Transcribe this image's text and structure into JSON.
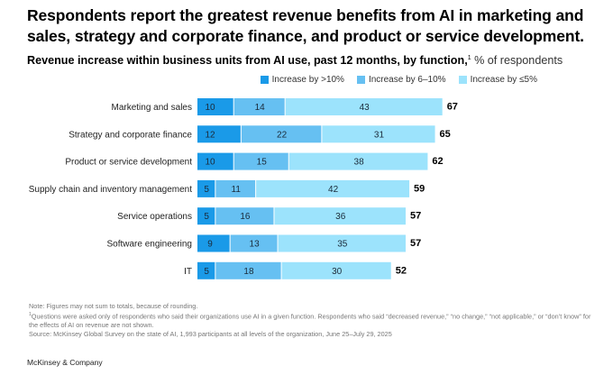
{
  "headline": "Respondents report the greatest revenue benefits from AI in marketing and sales, strategy and corporate finance, and product or service development.",
  "subtitle": {
    "bold": "Revenue increase within business units from AI use, past 12 months, by function,",
    "footnote_marker": "1",
    "light": " % of respondents"
  },
  "notes": {
    "note": "Note: Figures may not sum to totals, because of rounding.",
    "footnote_marker": "1",
    "footnote": "Questions were asked only of respondents who said their organizations use AI in a given function. Respondents who said “decreased revenue,” “no change,” “not applicable,” or “don’t know” for the effects of AI on revenue are not shown.",
    "source": "Source: McKinsey Global Survey on the state of AI, 1,993 participants at all levels of the organization, June 25–July 29, 2025"
  },
  "brand": "McKinsey & Company",
  "chart_data": {
    "type": "bar",
    "orientation": "horizontal",
    "stacked": true,
    "title": "Revenue increase within business units from AI use, past 12 months, by function",
    "xlabel": "% of respondents",
    "ylabel": "",
    "categories": [
      "Marketing and sales",
      "Strategy and corporate finance",
      "Product or service development",
      "Supply chain and inventory management",
      "Service operations",
      "Software engineering",
      "IT"
    ],
    "series": [
      {
        "name": "Increase by >10%",
        "color": "#1a9ae8",
        "values": [
          10,
          12,
          10,
          5,
          5,
          9,
          5
        ]
      },
      {
        "name": "Increase by 6–10%",
        "color": "#66c0f2",
        "values": [
          14,
          22,
          15,
          11,
          16,
          13,
          18
        ]
      },
      {
        "name": "Increase by ≤5%",
        "color": "#9ce3fc",
        "values": [
          43,
          31,
          38,
          42,
          36,
          35,
          30
        ]
      }
    ],
    "totals": [
      67,
      65,
      62,
      59,
      57,
      57,
      52
    ],
    "xlim": [
      0,
      67
    ],
    "grid": false,
    "legend_position": "top-right"
  }
}
